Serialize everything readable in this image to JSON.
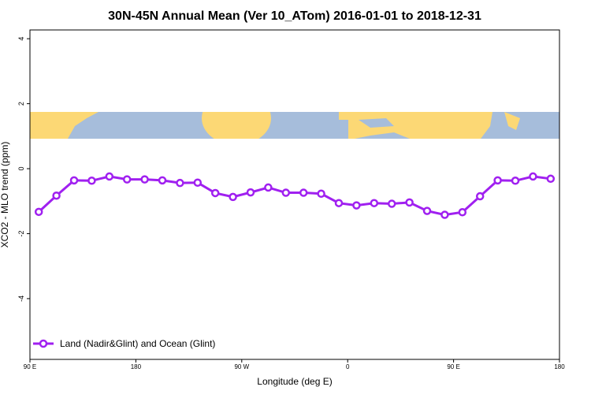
{
  "chart_data": {
    "type": "line",
    "title": "30N-45N Annual Mean (Ver 10_ATom)   2016-01-01 to 2018-12-31",
    "x_label": "Longitude (deg E)",
    "y_label": "XCO2 - MLO trend (ppm)",
    "x": [
      97.5,
      112.5,
      127.5,
      142.5,
      157.5,
      172.5,
      187.5,
      202.5,
      217.5,
      232.5,
      247.5,
      262.5,
      277.5,
      292.5,
      307.5,
      322.5,
      337.5,
      352.5,
      367.5,
      382.5,
      397.5,
      412.5,
      427.5,
      442.5,
      457.5,
      472.5,
      487.5,
      502.5,
      517.5,
      532.5
    ],
    "series": [
      {
        "name": "Land (Nadir&Glint) and Ocean (Glint)",
        "color": "#a020f0",
        "values": [
          -1.33,
          -0.83,
          -0.36,
          -0.37,
          -0.24,
          -0.33,
          -0.33,
          -0.36,
          -0.44,
          -0.43,
          -0.75,
          -0.87,
          -0.73,
          -0.58,
          -0.74,
          -0.74,
          -0.77,
          -1.06,
          -1.13,
          -1.06,
          -1.08,
          -1.04,
          -1.3,
          -1.42,
          -1.34,
          -0.85,
          -0.36,
          -0.37,
          -0.24,
          -0.31
        ]
      }
    ],
    "xlim": [
      90,
      540
    ],
    "xticks": [
      {
        "value": 90,
        "label": "90 E"
      },
      180,
      {
        "value": 270,
        "label": "90 W"
      },
      {
        "value": 360,
        "label": "0"
      },
      {
        "value": 450,
        "label": "90 E"
      },
      {
        "value": 540,
        "label": "180"
      }
    ],
    "ylim": [
      -5.87,
      4.27
    ],
    "yticks": [
      -4,
      -2,
      0,
      2,
      4
    ],
    "legend": "bottom-left"
  }
}
